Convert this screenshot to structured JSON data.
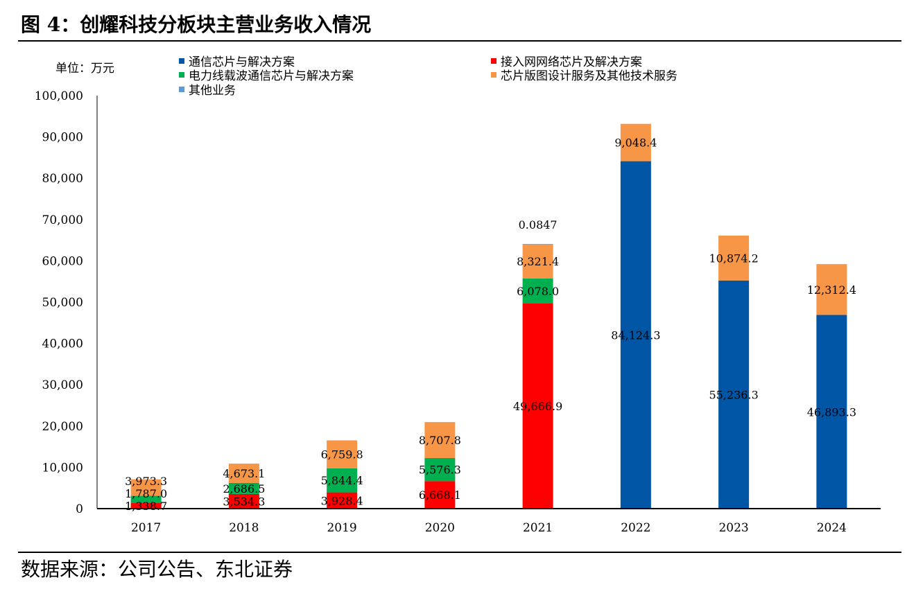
{
  "title": "图 4：创耀科技分板块主营业务收入情况",
  "source": "数据来源：公司公告、东北证券",
  "chart_data": {
    "type": "bar",
    "stacked": true,
    "unit_label": "单位：万元",
    "categories": [
      "2017",
      "2018",
      "2019",
      "2020",
      "2021",
      "2022",
      "2023",
      "2024"
    ],
    "ylim": [
      0,
      100000
    ],
    "yticks": [
      "0",
      "10,000",
      "20,000",
      "30,000",
      "40,000",
      "50,000",
      "60,000",
      "70,000",
      "80,000",
      "90,000",
      "100,000"
    ],
    "legend_position": "top",
    "series": [
      {
        "name": "通信芯片与解决方案",
        "color": "#0055A5",
        "values": [
          0,
          0,
          0,
          0,
          0,
          84124.3,
          55236.3,
          46893.3
        ],
        "labels": [
          "",
          "",
          "",
          "",
          "",
          "84,124.3",
          "55,236.3",
          "46,893.3"
        ]
      },
      {
        "name": "接入网网络芯片及解决方案",
        "color": "#FF0000",
        "values": [
          1338.7,
          3534.3,
          3928.4,
          6668.1,
          49666.9,
          0,
          0,
          0
        ],
        "labels": [
          "1,338.7",
          "3,534.3",
          "3,928.4",
          "6,668.1",
          "49,666.9",
          "",
          "",
          ""
        ]
      },
      {
        "name": "电力线载波通信芯片与解决方案",
        "color": "#00B050",
        "values": [
          1787.0,
          2686.5,
          5844.4,
          5576.3,
          6078.0,
          0,
          0,
          0
        ],
        "labels": [
          "1,787.0",
          "2,686.5",
          "5,844.4",
          "5,576.3",
          "6,078.0",
          "",
          "",
          ""
        ]
      },
      {
        "name": "芯片版图设计服务及其他技术服务",
        "color": "#F79646",
        "values": [
          3973.3,
          4673.1,
          6759.8,
          8707.8,
          8321.4,
          9048.4,
          10874.2,
          12312.4
        ],
        "labels": [
          "3,973.3",
          "4,673.1",
          "6,759.8",
          "8,707.8",
          "8,321.4",
          "9,048.4",
          "10,874.2",
          "12,312.4"
        ]
      },
      {
        "name": "其他业务",
        "color": "#5B9BD5",
        "values": [
          0,
          0,
          0,
          0,
          0.0847,
          0,
          0,
          0
        ],
        "labels": [
          "",
          "",
          "",
          "",
          "0.0847",
          "",
          "",
          ""
        ]
      }
    ]
  }
}
